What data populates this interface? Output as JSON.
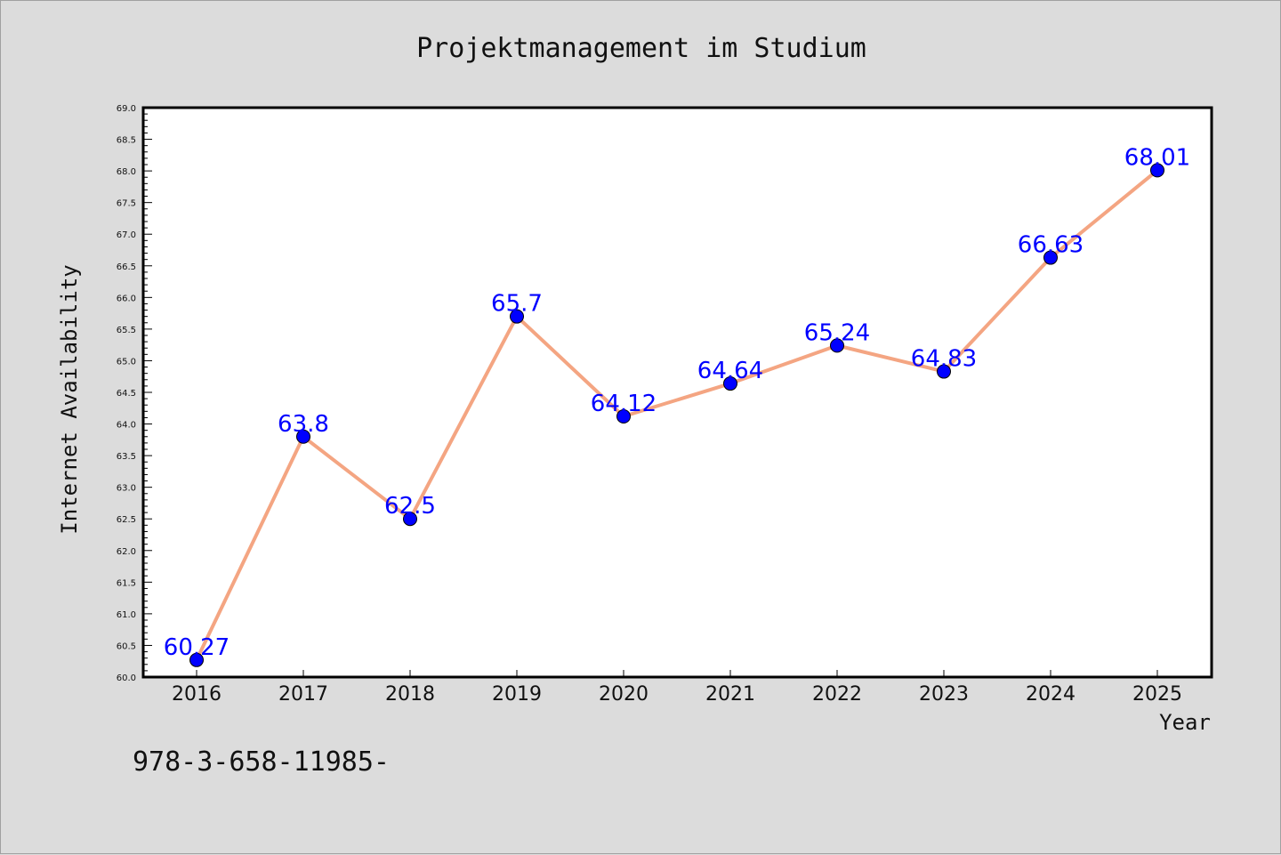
{
  "chart_data": {
    "type": "line",
    "title": "Projektmanagement im Studium",
    "xlabel": "Year",
    "ylabel": "Internet Availability",
    "x": [
      "2016",
      "2017",
      "2018",
      "2019",
      "2020",
      "2021",
      "2022",
      "2023",
      "2024",
      "2025"
    ],
    "series": [
      {
        "values": [
          60.27,
          63.8,
          62.5,
          65.7,
          64.12,
          64.64,
          65.24,
          64.83,
          66.63,
          68.01
        ],
        "data_labels": [
          "60.27",
          "63.8",
          "62.5",
          "65.7",
          "64.12",
          "64.64",
          "65.24",
          "64.83",
          "66.63",
          "68.01"
        ]
      }
    ],
    "ylim": [
      60.0,
      69.0
    ],
    "yticks": [
      "60.0",
      "60.5",
      "61.0",
      "61.5",
      "62.0",
      "62.5",
      "63.0",
      "63.5",
      "64.0",
      "64.5",
      "65.0",
      "65.5",
      "66.0",
      "66.5",
      "67.0",
      "67.5",
      "68.0",
      "68.5",
      "69.0"
    ],
    "grid": false,
    "legend": "none",
    "colors": {
      "line": "#f4a582",
      "marker": "#0000ff",
      "label": "#0000ff",
      "background": "#dcdcdc",
      "plot_area": "#ffffff"
    }
  },
  "footer_text": "978-3-658-11985-"
}
